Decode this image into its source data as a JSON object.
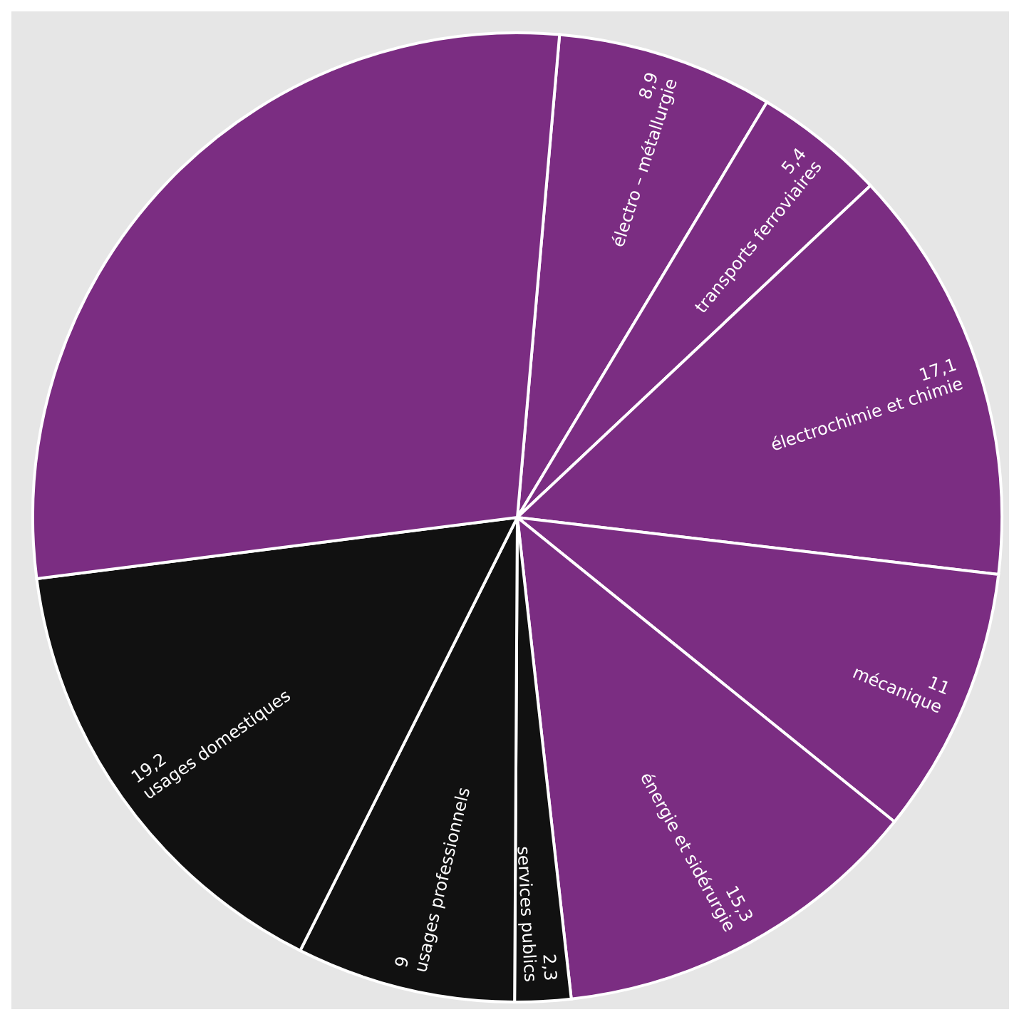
{
  "chart_data": {
    "type": "pie",
    "categories": [
      "électro – métallurgie",
      "transports ferroviaires",
      "électrochimie et chimie",
      "mécanique",
      "énergie et sidérurgie",
      "services publics",
      "usages professionnels",
      "usages domestiques",
      null
    ],
    "values": [
      8.9,
      5.4,
      17.1,
      11,
      15.3,
      2.3,
      9,
      19.2,
      35
    ],
    "value_labels": [
      "8,9",
      "5,4",
      "17,1",
      "11",
      "15,3",
      "2,3",
      "9",
      "19,2",
      null
    ],
    "colors": [
      "#7b2d82",
      "#7b2d82",
      "#7b2d82",
      "#7b2d82",
      "#7b2d82",
      "#111111",
      "#111111",
      "#111111",
      "#7b2d82"
    ],
    "legend": false
  }
}
